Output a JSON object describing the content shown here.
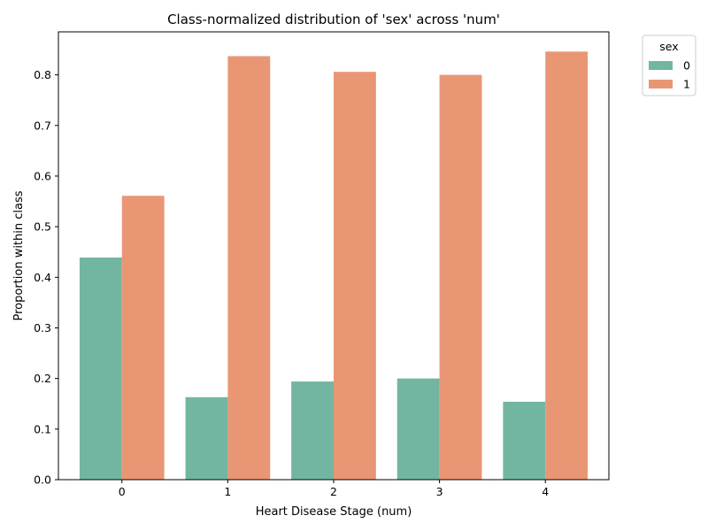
{
  "chart_data": {
    "type": "bar",
    "title": "Class-normalized distribution of 'sex' across 'num'",
    "xlabel": "Heart Disease Stage (num)",
    "ylabel": "Proportion within class",
    "categories": [
      "0",
      "1",
      "2",
      "3",
      "4"
    ],
    "series": [
      {
        "name": "0",
        "color": "#72b6a1",
        "values": [
          0.439,
          0.163,
          0.194,
          0.2,
          0.154
        ]
      },
      {
        "name": "1",
        "color": "#e99675",
        "values": [
          0.561,
          0.837,
          0.806,
          0.8,
          0.846
        ]
      }
    ],
    "ylim": [
      0,
      0.885
    ],
    "yticks": [
      "0.0",
      "0.1",
      "0.2",
      "0.3",
      "0.4",
      "0.5",
      "0.6",
      "0.7",
      "0.8"
    ],
    "legend": {
      "title": "sex",
      "placement": "outside-top-right"
    },
    "grid": false
  }
}
